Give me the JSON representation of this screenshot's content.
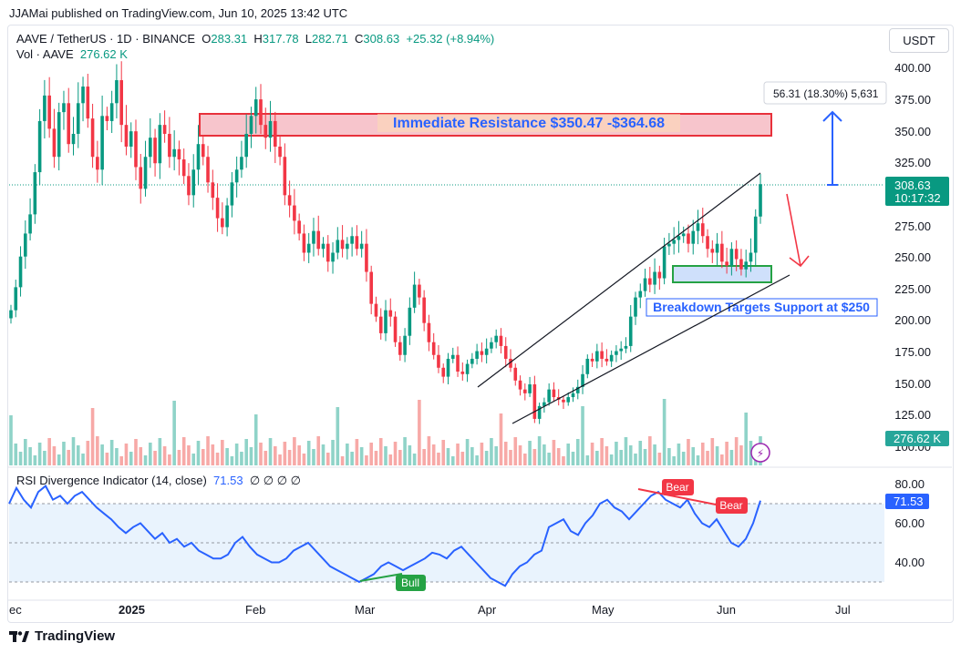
{
  "header": {
    "publisher": "JJAMai published on TradingView.com, Jun 10, 2025 13:42 UTC",
    "symbol": "AAVE / TetherUS · 1D · BINANCE",
    "ohlc_o_label": "O",
    "ohlc_o": "283.31",
    "ohlc_h_label": "H",
    "ohlc_h": "317.78",
    "ohlc_l_label": "L",
    "ohlc_l": "282.71",
    "ohlc_c_label": "C",
    "ohlc_c": "308.63",
    "change": "+25.32 (+8.94%)",
    "volume_label": "Vol · AAVE",
    "volume_value": "276.62 K",
    "currency": "USDT"
  },
  "price_axis": {
    "ticks": [
      "400.00",
      "375.00",
      "350.00",
      "325.00",
      "275.00",
      "250.00",
      "225.00",
      "200.00",
      "175.00",
      "150.00",
      "125.00",
      "100.00"
    ],
    "last_price": "308.63",
    "countdown": "10:17:32",
    "volume_badge": "276.62 K"
  },
  "rsi": {
    "legend": "RSI Divergence Indicator (14, close)",
    "value": "71.53",
    "extra": "∅ ∅ ∅ ∅",
    "ticks": [
      "80.00",
      "60.00",
      "40.00"
    ],
    "badge": "71.53",
    "labels": {
      "bull": "Bull",
      "bear1": "Bear",
      "bear2": "Bear"
    }
  },
  "time_axis": [
    "ec",
    "2025",
    "Feb",
    "Mar",
    "Apr",
    "May",
    "Jun",
    "Jul"
  ],
  "annotations": {
    "resistance": "Immediate Resistance $350.47 -$364.68",
    "support": "Breakdown Targets Support at $250",
    "measure": "56.31 (18.30%) 5,631"
  },
  "footer": {
    "brand": "TradingView"
  },
  "colors": {
    "up": "#089981",
    "down": "#f23645",
    "rsi": "#2962ff",
    "accent": "#2962ff"
  },
  "chart_data": {
    "type": "candlestick",
    "x_range": [
      "2024-12-01",
      "2025-07-05"
    ],
    "ylim": [
      95,
      410
    ],
    "close_series": [
      210,
      228,
      252,
      270,
      285,
      318,
      358,
      378,
      352,
      330,
      365,
      372,
      340,
      348,
      372,
      385,
      360,
      330,
      320,
      362,
      358,
      372,
      390,
      355,
      338,
      350,
      322,
      305,
      330,
      345,
      325,
      355,
      348,
      330,
      336,
      328,
      315,
      300,
      320,
      340,
      330,
      310,
      298,
      282,
      275,
      292,
      310,
      320,
      330,
      348,
      362,
      375,
      355,
      345,
      358,
      338,
      330,
      300,
      292,
      280,
      270,
      255,
      262,
      272,
      258,
      262,
      248,
      255,
      265,
      258,
      262,
      268,
      258,
      262,
      240,
      215,
      205,
      192,
      210,
      205,
      185,
      175,
      190,
      212,
      230,
      220,
      200,
      185,
      175,
      165,
      158,
      172,
      175,
      162,
      160,
      168,
      172,
      178,
      175,
      180,
      185,
      190,
      182,
      172,
      165,
      155,
      148,
      145,
      152,
      125,
      135,
      138,
      148,
      142,
      140,
      138,
      142,
      145,
      150,
      160,
      172,
      170,
      178,
      172,
      170,
      175,
      178,
      180,
      182,
      205,
      220,
      225,
      235,
      230,
      240,
      235,
      260,
      262,
      265,
      268,
      270,
      262,
      272,
      278,
      268,
      258,
      255,
      262,
      248,
      245,
      258,
      250,
      242,
      248,
      255,
      283.31,
      308.63
    ],
    "rsi_series": [
      70,
      78,
      72,
      68,
      76,
      79,
      72,
      74,
      70,
      74,
      76,
      72,
      68,
      65,
      62,
      58,
      55,
      58,
      60,
      56,
      52,
      55,
      50,
      52,
      48,
      50,
      46,
      44,
      42,
      42,
      44,
      50,
      53,
      48,
      44,
      42,
      40,
      40,
      42,
      46,
      48,
      50,
      46,
      42,
      38,
      36,
      34,
      32,
      30,
      32,
      34,
      38,
      40,
      38,
      36,
      38,
      40,
      42,
      45,
      44,
      42,
      46,
      48,
      44,
      40,
      36,
      32,
      30,
      28,
      34,
      38,
      40,
      44,
      46,
      58,
      60,
      62,
      56,
      54,
      60,
      64,
      70,
      72,
      68,
      66,
      62,
      66,
      70,
      74,
      76,
      72,
      70,
      68,
      72,
      65,
      60,
      58,
      62,
      56,
      50,
      48,
      52,
      60,
      71.53
    ],
    "series": [
      {
        "name": "Bull",
        "type": "divergence"
      },
      {
        "name": "Bear",
        "type": "divergence"
      }
    ]
  }
}
